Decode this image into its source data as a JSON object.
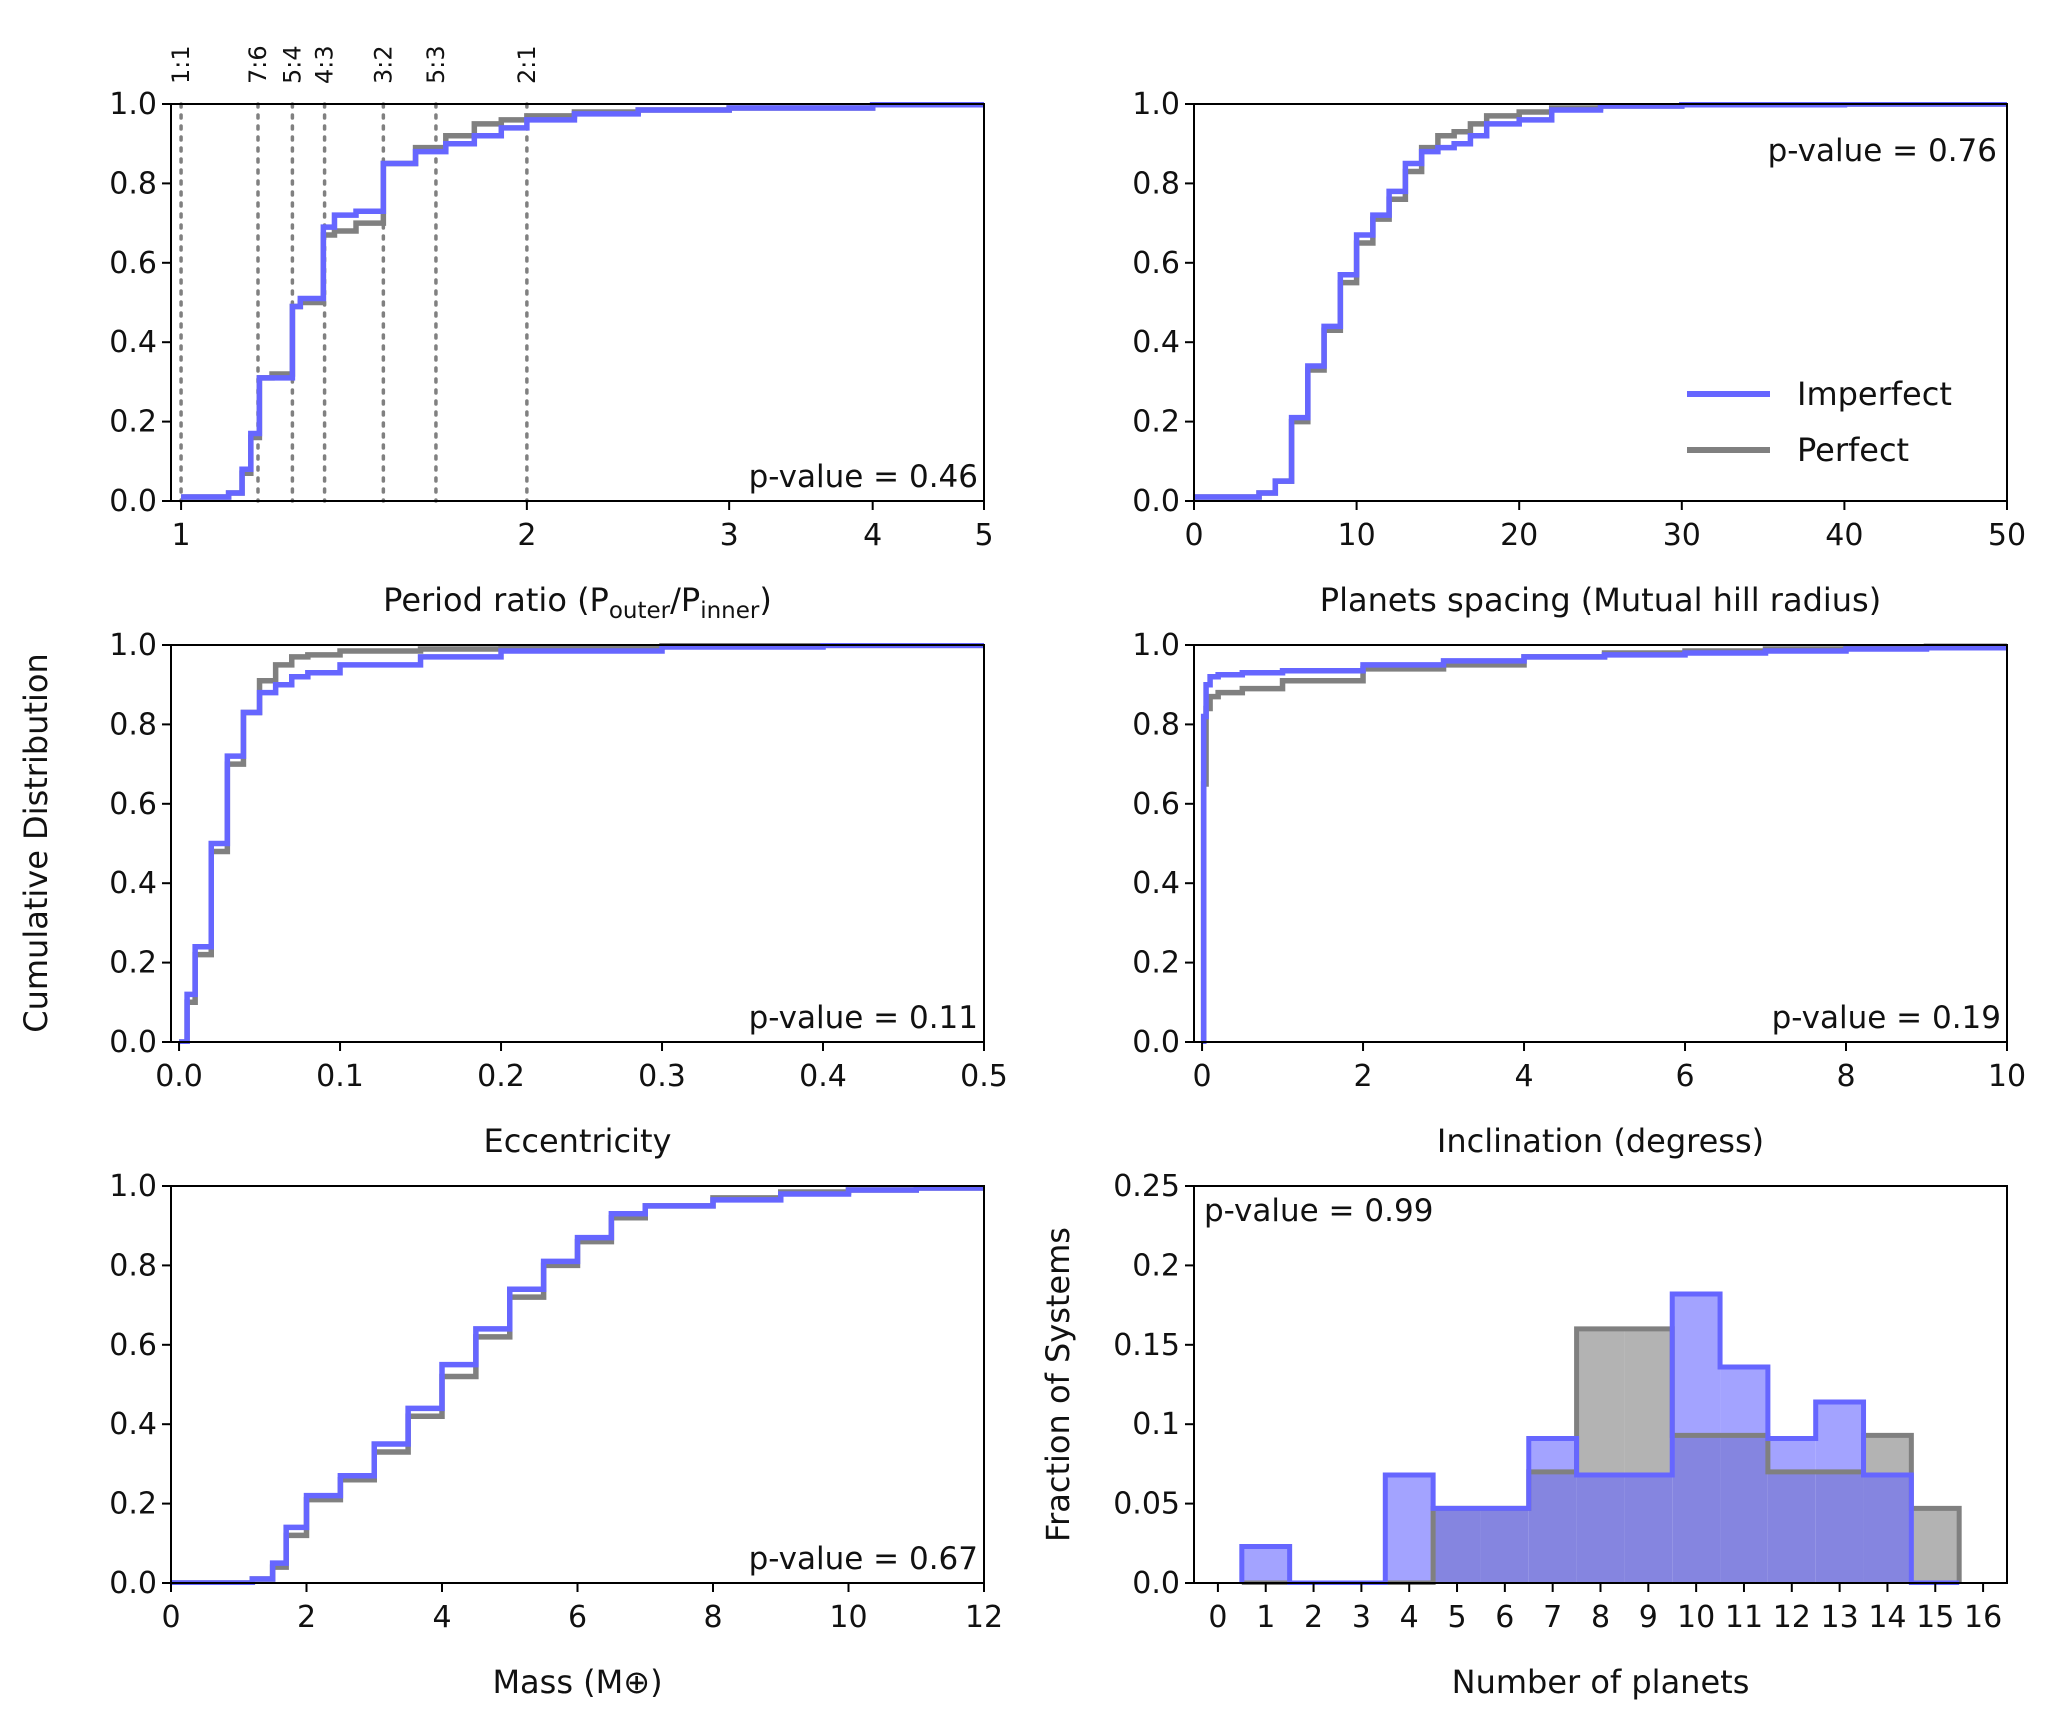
{
  "colors": {
    "imperfect": "#6666ff",
    "perfect": "#808080",
    "imperfect_fill": "#a3a3ff",
    "perfect_fill": "#b3b3b3",
    "overlap_fill": "#8585e0",
    "resonance_line": "#808080",
    "axis": "#000000"
  },
  "shared_ylabel": "Cumulative Distribution",
  "chart_data": [
    {
      "id": "period-ratio",
      "type": "line",
      "step": true,
      "xscale": "log",
      "xlim": [
        0.98,
        5
      ],
      "ylim": [
        0,
        1
      ],
      "xticks": [
        1,
        2,
        3,
        4,
        5
      ],
      "xtick_labels": [
        "1",
        "2",
        "3",
        "4",
        "5"
      ],
      "yticks": [
        0,
        0.2,
        0.4,
        0.6,
        0.8,
        1.0
      ],
      "ytick_labels": [
        "0.0",
        "0.2",
        "0.4",
        "0.6",
        "0.8",
        "1.0"
      ],
      "xlabel_main": "Period ratio (P",
      "xlabel_sub1": "outer",
      "xlabel_mid": "/P",
      "xlabel_sub2": "inner",
      "xlabel_end": ")",
      "ylabel": "",
      "pvalue": "p-value = 0.46",
      "pvalue_position": "bottom-right",
      "resonances": [
        {
          "label": "1:1",
          "x": 1.0
        },
        {
          "label": "7:6",
          "x": 1.1667
        },
        {
          "label": "5:4",
          "x": 1.25
        },
        {
          "label": "4:3",
          "x": 1.3333
        },
        {
          "label": "3:2",
          "x": 1.5
        },
        {
          "label": "5:3",
          "x": 1.6667
        },
        {
          "label": "2:1",
          "x": 2.0
        }
      ],
      "series": [
        {
          "name": "Perfect",
          "x": [
            1.0,
            1.1,
            1.13,
            1.15,
            1.17,
            1.2,
            1.25,
            1.27,
            1.33,
            1.36,
            1.42,
            1.5,
            1.6,
            1.7,
            1.8,
            1.9,
            2.0,
            2.2,
            2.5,
            3.0,
            4.0,
            5.0
          ],
          "y": [
            0.01,
            0.02,
            0.07,
            0.16,
            0.31,
            0.32,
            0.49,
            0.5,
            0.67,
            0.68,
            0.7,
            0.85,
            0.89,
            0.92,
            0.95,
            0.96,
            0.97,
            0.98,
            0.985,
            0.99,
            0.998,
            1.0
          ]
        },
        {
          "name": "Imperfect",
          "x": [
            1.0,
            1.1,
            1.13,
            1.15,
            1.17,
            1.2,
            1.25,
            1.27,
            1.33,
            1.36,
            1.42,
            1.5,
            1.6,
            1.7,
            1.8,
            1.9,
            2.0,
            2.2,
            2.5,
            3.0,
            4.0,
            5.0
          ],
          "y": [
            0.01,
            0.02,
            0.08,
            0.17,
            0.31,
            0.31,
            0.49,
            0.51,
            0.69,
            0.72,
            0.73,
            0.85,
            0.88,
            0.9,
            0.92,
            0.94,
            0.96,
            0.975,
            0.985,
            0.99,
            0.998,
            1.0
          ]
        }
      ]
    },
    {
      "id": "spacing",
      "type": "line",
      "step": true,
      "xscale": "linear",
      "xlim": [
        0,
        50
      ],
      "ylim": [
        0,
        1
      ],
      "xticks": [
        0,
        10,
        20,
        30,
        40,
        50
      ],
      "xtick_labels": [
        "0",
        "10",
        "20",
        "30",
        "40",
        "50"
      ],
      "yticks": [
        0,
        0.2,
        0.4,
        0.6,
        0.8,
        1.0
      ],
      "ytick_labels": [
        "0.0",
        "0.2",
        "0.4",
        "0.6",
        "0.8",
        "1.0"
      ],
      "xlabel": "Planets spacing (Mutual hill radius)",
      "ylabel": "",
      "pvalue": "p-value = 0.76",
      "pvalue_position": "top-right",
      "legend": {
        "position": "right",
        "entries": [
          "Imperfect",
          "Perfect"
        ]
      },
      "series": [
        {
          "name": "Perfect",
          "x": [
            0,
            3,
            4,
            5,
            6,
            7,
            8,
            9,
            10,
            11,
            12,
            13,
            14,
            15,
            16,
            17,
            18,
            20,
            22,
            25,
            30,
            40,
            50
          ],
          "y": [
            0.01,
            0.01,
            0.02,
            0.05,
            0.2,
            0.33,
            0.43,
            0.55,
            0.65,
            0.71,
            0.76,
            0.83,
            0.89,
            0.92,
            0.93,
            0.95,
            0.97,
            0.98,
            0.99,
            0.995,
            0.998,
            1.0,
            1.0
          ]
        },
        {
          "name": "Imperfect",
          "x": [
            0,
            3,
            4,
            5,
            6,
            7,
            8,
            9,
            10,
            11,
            12,
            13,
            14,
            15,
            16,
            17,
            18,
            20,
            22,
            25,
            30,
            40,
            50
          ],
          "y": [
            0.01,
            0.01,
            0.02,
            0.05,
            0.21,
            0.34,
            0.44,
            0.57,
            0.67,
            0.72,
            0.78,
            0.85,
            0.88,
            0.89,
            0.9,
            0.92,
            0.95,
            0.96,
            0.985,
            0.995,
            0.998,
            1.0,
            1.0
          ]
        }
      ]
    },
    {
      "id": "eccentricity",
      "type": "line",
      "step": true,
      "xscale": "linear",
      "xlim": [
        -0.005,
        0.5
      ],
      "ylim": [
        0,
        1
      ],
      "xticks": [
        0,
        0.1,
        0.2,
        0.3,
        0.4,
        0.5
      ],
      "xtick_labels": [
        "0.0",
        "0.1",
        "0.2",
        "0.3",
        "0.4",
        "0.5"
      ],
      "yticks": [
        0,
        0.2,
        0.4,
        0.6,
        0.8,
        1.0
      ],
      "ytick_labels": [
        "0.0",
        "0.2",
        "0.4",
        "0.6",
        "0.8",
        "1.0"
      ],
      "xlabel": "Eccentricity",
      "ylabel": "Cumulative Distribution",
      "pvalue": "p-value = 0.11",
      "pvalue_position": "bottom-right",
      "series": [
        {
          "name": "Perfect",
          "x": [
            0,
            0.005,
            0.01,
            0.02,
            0.03,
            0.04,
            0.05,
            0.06,
            0.07,
            0.08,
            0.1,
            0.15,
            0.2,
            0.3,
            0.4,
            0.5
          ],
          "y": [
            0.0,
            0.1,
            0.22,
            0.48,
            0.7,
            0.83,
            0.91,
            0.95,
            0.97,
            0.975,
            0.985,
            0.99,
            0.995,
            0.998,
            0.999,
            1.0
          ]
        },
        {
          "name": "Imperfect",
          "x": [
            0,
            0.005,
            0.01,
            0.02,
            0.03,
            0.04,
            0.05,
            0.06,
            0.07,
            0.08,
            0.1,
            0.15,
            0.2,
            0.3,
            0.4,
            0.5
          ],
          "y": [
            0.0,
            0.12,
            0.24,
            0.5,
            0.72,
            0.83,
            0.88,
            0.9,
            0.92,
            0.93,
            0.95,
            0.97,
            0.985,
            0.995,
            0.999,
            1.0
          ]
        }
      ]
    },
    {
      "id": "inclination",
      "type": "line",
      "step": true,
      "xscale": "linear",
      "xlim": [
        -0.1,
        10
      ],
      "ylim": [
        0,
        1
      ],
      "xticks": [
        0,
        2,
        4,
        6,
        8,
        10
      ],
      "xtick_labels": [
        "0",
        "2",
        "4",
        "6",
        "8",
        "10"
      ],
      "yticks": [
        0,
        0.2,
        0.4,
        0.6,
        0.8,
        1.0
      ],
      "ytick_labels": [
        "0.0",
        "0.2",
        "0.4",
        "0.6",
        "0.8",
        "1.0"
      ],
      "xlabel": "Inclination (degress)",
      "ylabel": "",
      "pvalue": "p-value = 0.19",
      "pvalue_position": "bottom-right",
      "series": [
        {
          "name": "Perfect",
          "x": [
            0,
            0.02,
            0.05,
            0.1,
            0.2,
            0.5,
            1,
            2,
            3,
            4,
            5,
            6,
            7,
            8,
            9,
            10
          ],
          "y": [
            0.0,
            0.65,
            0.84,
            0.87,
            0.88,
            0.89,
            0.91,
            0.94,
            0.95,
            0.97,
            0.98,
            0.985,
            0.99,
            0.993,
            0.997,
            1.0
          ]
        },
        {
          "name": "Imperfect",
          "x": [
            0,
            0.02,
            0.05,
            0.1,
            0.2,
            0.5,
            1,
            2,
            3,
            4,
            5,
            6,
            7,
            8,
            9,
            10
          ],
          "y": [
            0.0,
            0.82,
            0.9,
            0.92,
            0.925,
            0.93,
            0.935,
            0.95,
            0.96,
            0.97,
            0.975,
            0.98,
            0.985,
            0.99,
            0.993,
            1.0
          ]
        }
      ]
    },
    {
      "id": "mass",
      "type": "line",
      "step": true,
      "xscale": "linear",
      "xlim": [
        0,
        12
      ],
      "ylim": [
        0,
        1
      ],
      "xticks": [
        0,
        2,
        4,
        6,
        8,
        10,
        12
      ],
      "xtick_labels": [
        "0",
        "2",
        "4",
        "6",
        "8",
        "10",
        "12"
      ],
      "yticks": [
        0,
        0.2,
        0.4,
        0.6,
        0.8,
        1.0
      ],
      "ytick_labels": [
        "0.0",
        "0.2",
        "0.4",
        "0.6",
        "0.8",
        "1.0"
      ],
      "xlabel": "Mass (M⊕)",
      "ylabel": "",
      "pvalue": "p-value = 0.67",
      "pvalue_position": "bottom-right",
      "series": [
        {
          "name": "Perfect",
          "x": [
            0,
            1.0,
            1.2,
            1.5,
            1.7,
            2.0,
            2.5,
            3.0,
            3.5,
            4.0,
            4.5,
            5.0,
            5.5,
            6.0,
            6.5,
            7.0,
            8.0,
            9.0,
            10.0,
            11.0,
            12.0
          ],
          "y": [
            0.0,
            0.0,
            0.01,
            0.04,
            0.12,
            0.21,
            0.26,
            0.33,
            0.42,
            0.52,
            0.62,
            0.72,
            0.8,
            0.86,
            0.92,
            0.95,
            0.97,
            0.985,
            0.99,
            0.995,
            1.0
          ]
        },
        {
          "name": "Imperfect",
          "x": [
            0,
            1.0,
            1.2,
            1.5,
            1.7,
            2.0,
            2.5,
            3.0,
            3.5,
            4.0,
            4.5,
            5.0,
            5.5,
            6.0,
            6.5,
            7.0,
            8.0,
            9.0,
            10.0,
            11.0,
            12.0
          ],
          "y": [
            0.0,
            0.0,
            0.01,
            0.05,
            0.14,
            0.22,
            0.27,
            0.35,
            0.44,
            0.55,
            0.64,
            0.74,
            0.81,
            0.87,
            0.93,
            0.95,
            0.965,
            0.98,
            0.99,
            0.995,
            1.0
          ]
        }
      ]
    },
    {
      "id": "num-planets",
      "type": "histogram",
      "xscale": "linear",
      "xlim": [
        -0.5,
        16.5
      ],
      "ylim": [
        0,
        0.25
      ],
      "xticks": [
        0,
        1,
        2,
        3,
        4,
        5,
        6,
        7,
        8,
        9,
        10,
        11,
        12,
        13,
        14,
        15,
        16
      ],
      "xtick_labels": [
        "0",
        "1",
        "2",
        "3",
        "4",
        "5",
        "6",
        "7",
        "8",
        "9",
        "10",
        "11",
        "12",
        "13",
        "14",
        "15",
        "16"
      ],
      "yticks": [
        0,
        0.05,
        0.1,
        0.15,
        0.2,
        0.25
      ],
      "ytick_labels": [
        "0.0",
        "0.05",
        "0.1",
        "0.15",
        "0.2",
        "0.25"
      ],
      "xlabel": "Number of planets",
      "ylabel": "Fraction of Systems",
      "pvalue": "p-value = 0.99",
      "pvalue_position": "top-left",
      "categories": [
        1,
        2,
        3,
        4,
        5,
        6,
        7,
        8,
        9,
        10,
        11,
        12,
        13,
        14,
        15
      ],
      "series": [
        {
          "name": "Perfect",
          "values": [
            0,
            0,
            0,
            0,
            0.047,
            0.047,
            0.07,
            0.16,
            0.16,
            0.093,
            0.093,
            0.07,
            0.07,
            0.093,
            0.047
          ]
        },
        {
          "name": "Imperfect",
          "values": [
            0.023,
            0,
            0,
            0.068,
            0.047,
            0.047,
            0.091,
            0.068,
            0.068,
            0.182,
            0.136,
            0.091,
            0.114,
            0.068,
            0
          ]
        }
      ]
    }
  ]
}
